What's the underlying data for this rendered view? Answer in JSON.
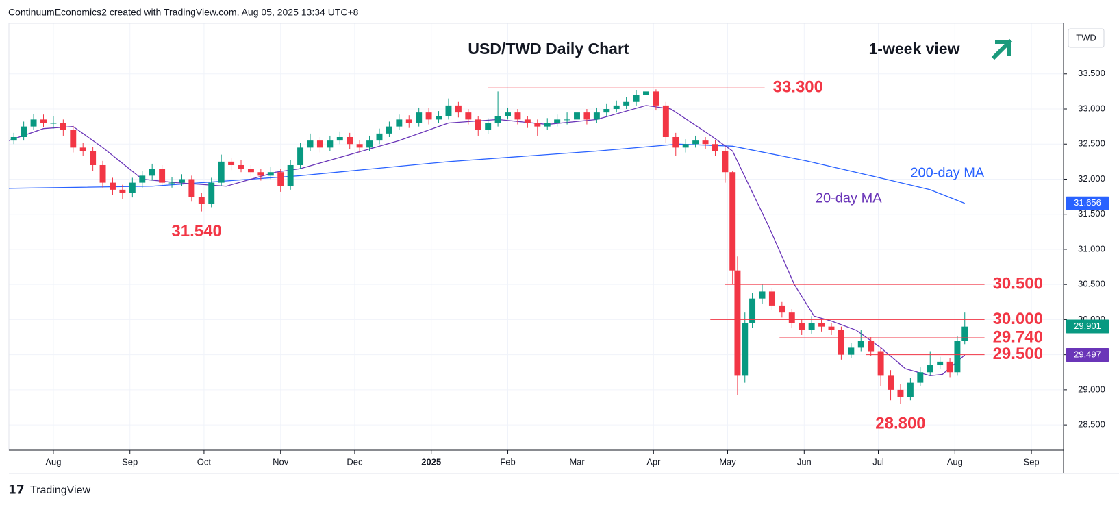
{
  "header": "ContinuumEconomics2 created with TradingView.com, Aug 05, 2025 13:34 UTC+8",
  "footer": "TradingView",
  "chart_data": {
    "type": "candlestick",
    "title": "USD/TWD Daily Chart",
    "subtitle": "1-week view",
    "currency": "TWD",
    "up_color": "#089981",
    "down_color": "#f23645",
    "grid": true,
    "xlim": [
      -18,
      409
    ],
    "ylim": [
      28.14,
      34.22
    ],
    "xticks": [
      {
        "value": 0,
        "label": "Aug"
      },
      {
        "value": 31,
        "label": "Sep"
      },
      {
        "value": 61,
        "label": "Oct"
      },
      {
        "value": 92,
        "label": "Nov"
      },
      {
        "value": 122,
        "label": "Dec"
      },
      {
        "value": 153,
        "label": "2025"
      },
      {
        "value": 184,
        "label": "Feb"
      },
      {
        "value": 212,
        "label": "Mar"
      },
      {
        "value": 243,
        "label": "Apr"
      },
      {
        "value": 273,
        "label": "May"
      },
      {
        "value": 304,
        "label": "Jun"
      },
      {
        "value": 334,
        "label": "Jul"
      },
      {
        "value": 365,
        "label": "Aug"
      },
      {
        "value": 396,
        "label": "Sep"
      }
    ],
    "yticks": [
      {
        "value": 28.5,
        "label": "28.500"
      },
      {
        "value": 29,
        "label": "29.000"
      },
      {
        "value": 29.5,
        "label": "29.500"
      },
      {
        "value": 30,
        "label": "30.000"
      },
      {
        "value": 30.5,
        "label": "30.500"
      },
      {
        "value": 31,
        "label": "31.000"
      },
      {
        "value": 31.5,
        "label": "31.500"
      },
      {
        "value": 32,
        "label": "32.000"
      },
      {
        "value": 32.5,
        "label": "32.500"
      },
      {
        "value": 33,
        "label": "33.000"
      },
      {
        "value": 33.5,
        "label": "33.500"
      }
    ],
    "candles": {
      "x": [
        -16,
        -12,
        -8,
        -4,
        0,
        4,
        8,
        12,
        16,
        20,
        24,
        28,
        32,
        36,
        40,
        44,
        48,
        52,
        56,
        60,
        64,
        68,
        72,
        76,
        80,
        84,
        88,
        92,
        96,
        100,
        104,
        108,
        112,
        116,
        120,
        124,
        128,
        132,
        136,
        140,
        144,
        148,
        152,
        156,
        160,
        164,
        168,
        172,
        176,
        180,
        184,
        188,
        192,
        196,
        200,
        204,
        208,
        212,
        216,
        220,
        224,
        228,
        232,
        236,
        240,
        244,
        248,
        252,
        256,
        260,
        264,
        268,
        272,
        275,
        277,
        280,
        283,
        287,
        291,
        295,
        299,
        303,
        307,
        311,
        315,
        319,
        323,
        327,
        331,
        335,
        339,
        343,
        347,
        351,
        355,
        359,
        363,
        366,
        369
      ],
      "open": [
        32.55,
        32.6,
        32.75,
        32.85,
        32.8,
        32.8,
        32.7,
        32.45,
        32.4,
        32.2,
        31.95,
        31.85,
        31.8,
        31.95,
        32.05,
        32.15,
        31.95,
        31.95,
        32.0,
        31.75,
        31.65,
        31.95,
        32.25,
        32.2,
        32.15,
        32.1,
        32.05,
        32.1,
        31.9,
        32.2,
        32.45,
        32.55,
        32.45,
        32.55,
        32.6,
        32.5,
        32.45,
        32.55,
        32.65,
        32.75,
        32.85,
        32.8,
        32.95,
        32.85,
        32.9,
        33.05,
        32.95,
        32.85,
        32.7,
        32.8,
        32.9,
        32.95,
        32.85,
        32.8,
        32.75,
        32.8,
        32.85,
        32.85,
        32.95,
        32.85,
        32.95,
        33.0,
        33.05,
        33.1,
        33.2,
        33.25,
        33.05,
        32.6,
        32.45,
        32.5,
        32.55,
        32.5,
        32.4,
        32.1,
        30.7,
        29.2,
        29.95,
        30.3,
        30.4,
        30.2,
        30.1,
        29.95,
        29.85,
        29.95,
        29.9,
        29.85,
        29.5,
        29.6,
        29.7,
        29.55,
        29.2,
        29.0,
        28.9,
        29.1,
        29.25,
        29.35,
        29.4,
        29.25,
        29.7
      ],
      "high": [
        32.66,
        32.82,
        32.93,
        32.92,
        32.9,
        32.85,
        32.76,
        32.52,
        32.46,
        32.26,
        32.02,
        31.92,
        32.02,
        32.12,
        32.22,
        32.2,
        32.03,
        32.07,
        32.05,
        31.8,
        32.02,
        32.35,
        32.3,
        32.27,
        32.2,
        32.15,
        32.17,
        32.15,
        32.27,
        32.52,
        32.65,
        32.6,
        32.62,
        32.68,
        32.66,
        32.56,
        32.62,
        32.72,
        32.82,
        32.92,
        32.91,
        33.02,
        33.01,
        32.97,
        33.15,
        33.1,
        33.0,
        32.9,
        32.87,
        33.25,
        33.02,
        33.0,
        32.9,
        32.85,
        32.87,
        32.92,
        32.95,
        33.02,
        33.0,
        33.02,
        33.07,
        33.12,
        33.17,
        33.27,
        33.3,
        33.28,
        33.1,
        32.66,
        32.57,
        32.62,
        32.6,
        32.56,
        32.45,
        32.12,
        30.9,
        30.1,
        30.38,
        30.5,
        30.45,
        30.25,
        30.15,
        30.0,
        30.05,
        30.0,
        29.95,
        29.9,
        29.67,
        29.85,
        29.75,
        29.6,
        29.28,
        29.08,
        29.17,
        29.32,
        29.55,
        29.47,
        29.45,
        29.77,
        30.1
      ],
      "low": [
        32.5,
        32.55,
        32.7,
        32.74,
        32.72,
        32.62,
        32.38,
        32.33,
        32.12,
        31.88,
        31.78,
        31.72,
        31.74,
        31.88,
        31.98,
        31.9,
        31.88,
        31.9,
        31.68,
        31.54,
        31.6,
        31.9,
        32.13,
        32.1,
        32.03,
        31.98,
        32.0,
        31.82,
        31.85,
        32.15,
        32.4,
        32.38,
        32.4,
        32.5,
        32.43,
        32.38,
        32.4,
        32.5,
        32.6,
        32.7,
        32.73,
        32.75,
        32.78,
        32.8,
        32.85,
        32.88,
        32.78,
        32.62,
        32.64,
        32.75,
        32.85,
        32.78,
        32.73,
        32.62,
        32.7,
        32.75,
        32.78,
        32.8,
        32.78,
        32.8,
        32.9,
        32.95,
        33.0,
        33.05,
        33.12,
        32.98,
        32.52,
        32.33,
        32.38,
        32.45,
        32.43,
        32.33,
        31.95,
        30.5,
        28.93,
        29.1,
        29.88,
        30.22,
        30.13,
        30.03,
        29.88,
        29.78,
        29.8,
        29.83,
        29.78,
        29.43,
        29.45,
        29.55,
        29.48,
        29.05,
        28.85,
        28.8,
        28.85,
        29.05,
        29.2,
        29.3,
        29.18,
        29.2,
        29.65
      ],
      "close": [
        32.6,
        32.75,
        32.85,
        32.8,
        32.8,
        32.7,
        32.45,
        32.4,
        32.2,
        31.95,
        31.85,
        31.8,
        31.95,
        32.05,
        32.15,
        31.95,
        31.95,
        32.0,
        31.75,
        31.65,
        31.95,
        32.25,
        32.2,
        32.15,
        32.1,
        32.05,
        32.1,
        31.9,
        32.2,
        32.45,
        32.55,
        32.45,
        32.55,
        32.6,
        32.5,
        32.45,
        32.55,
        32.65,
        32.75,
        32.85,
        32.8,
        32.95,
        32.85,
        32.9,
        33.05,
        32.95,
        32.85,
        32.7,
        32.8,
        32.9,
        32.95,
        32.85,
        32.8,
        32.75,
        32.8,
        32.85,
        32.85,
        32.95,
        32.85,
        32.95,
        33.0,
        33.05,
        33.1,
        33.2,
        33.25,
        33.05,
        32.6,
        32.45,
        32.5,
        32.55,
        32.5,
        32.4,
        32.1,
        30.7,
        29.2,
        29.95,
        30.3,
        30.4,
        30.2,
        30.1,
        29.95,
        29.85,
        29.95,
        29.9,
        29.85,
        29.5,
        29.6,
        29.7,
        29.55,
        29.2,
        29.0,
        28.9,
        29.1,
        29.25,
        29.35,
        29.4,
        29.25,
        29.7,
        29.9
      ]
    },
    "series": [
      {
        "name": "200-day MA",
        "color": "#2962ff",
        "x": [
          -18,
          40,
          100,
          160,
          220,
          253,
          275,
          305,
          337,
          355,
          369
        ],
        "values": [
          31.87,
          31.9,
          32.05,
          32.25,
          32.4,
          32.5,
          32.47,
          32.26,
          32.0,
          31.85,
          31.656
        ],
        "last_label": {
          "value": 31.656,
          "label": "31.656"
        }
      },
      {
        "name": "20-day MA",
        "color": "#6a35b8",
        "x": [
          -18,
          -4,
          8,
          20,
          36,
          50,
          70,
          90,
          100,
          120,
          140,
          160,
          180,
          200,
          220,
          240,
          250,
          265,
          275,
          290,
          300,
          308,
          315,
          325,
          335,
          345,
          355,
          360,
          369
        ],
        "values": [
          32.55,
          32.72,
          32.75,
          32.45,
          32.0,
          31.95,
          31.9,
          32.1,
          32.15,
          32.35,
          32.55,
          32.8,
          32.85,
          32.78,
          32.85,
          33.05,
          33.0,
          32.65,
          32.4,
          31.3,
          30.5,
          30.05,
          29.98,
          29.85,
          29.6,
          29.3,
          29.2,
          29.22,
          29.497
        ],
        "last_label": {
          "value": 29.497,
          "label": "29.497"
        }
      }
    ],
    "last_price": {
      "value": 29.901,
      "label": "29.901"
    },
    "levels": [
      {
        "value": 33.3,
        "label": "33.300",
        "from": 176,
        "to": 288
      },
      {
        "value": 30.5,
        "label": "30.500",
        "from": 272,
        "to": 377
      },
      {
        "value": 30.0,
        "label": "30.000",
        "from": 266,
        "to": 377
      },
      {
        "value": 29.74,
        "label": "29.740",
        "from": 294,
        "to": 377
      },
      {
        "value": 29.5,
        "label": "29.500",
        "from": 329,
        "to": 377
      }
    ],
    "annotations": [
      {
        "value": 31.54,
        "label": "31.540",
        "x": 58
      },
      {
        "value": 28.8,
        "label": "28.800",
        "x": 343
      }
    ]
  }
}
